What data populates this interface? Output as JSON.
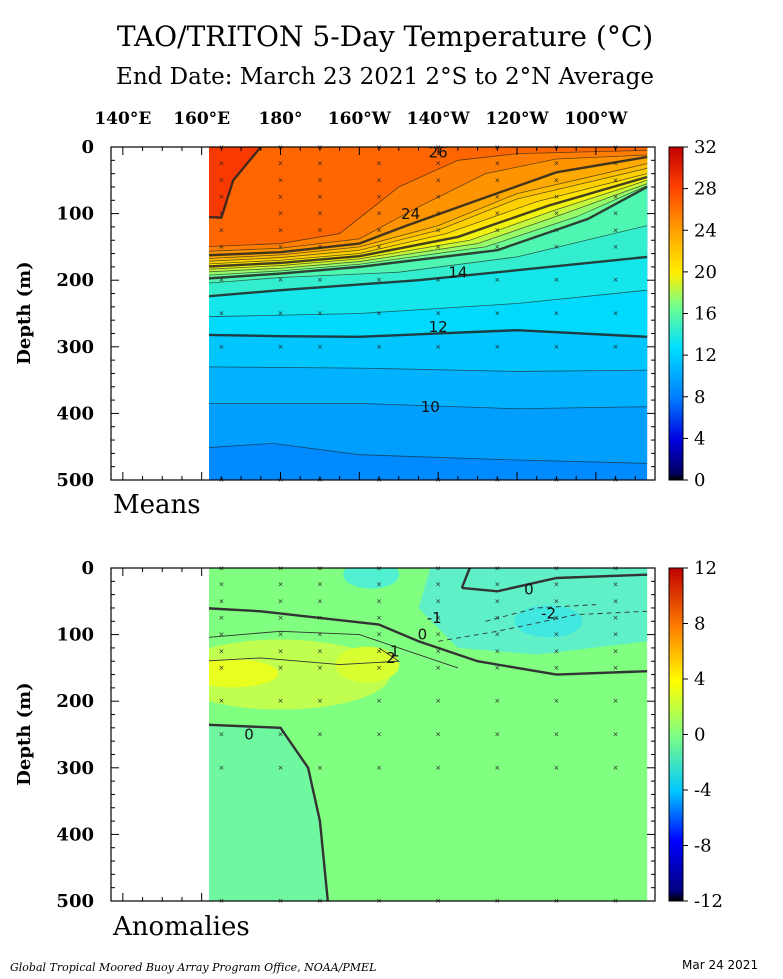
{
  "title": "TAO/TRITON 5-Day Temperature (°C)",
  "subtitle": "End Date: March 23 2021   2°S to 2°N Average",
  "footer": {
    "credit": "Global Tropical Moored Buoy Array Program Office, NOAA/PMEL",
    "date": "Mar 24 2021"
  },
  "chart_data": [
    {
      "type": "heatmap",
      "panel_label": "Means",
      "x_tick_labels": [
        "140°E",
        "160°E",
        "180°",
        "160°W",
        "140°W",
        "120°W",
        "100°W"
      ],
      "x_tick_values": [
        140,
        160,
        180,
        200,
        220,
        240,
        260
      ],
      "xlim": [
        137,
        275
      ],
      "data_xlim": [
        160,
        273
      ],
      "ylabel": "Depth (m)",
      "y_tick_labels": [
        "0",
        "100",
        "200",
        "300",
        "400",
        "500"
      ],
      "ylim": [
        0,
        500
      ],
      "colorbar": {
        "ticks": [
          "0",
          "4",
          "8",
          "12",
          "16",
          "20",
          "24",
          "28",
          "32"
        ],
        "range": [
          0,
          32
        ]
      },
      "contour_labels": [
        "26",
        "24",
        "14",
        "12",
        "10"
      ],
      "isotherms": [
        {
          "value": 28,
          "points": [
            [
              160,
              105
            ],
            [
              165,
              106
            ],
            [
              168,
              50
            ],
            [
              175,
              0
            ]
          ]
        },
        {
          "value": 26,
          "points": [
            [
              160,
              150
            ],
            [
              180,
              145
            ],
            [
              195,
              130
            ],
            [
              210,
              60
            ],
            [
              225,
              20
            ],
            [
              240,
              10
            ],
            [
              273,
              5
            ]
          ]
        },
        {
          "value": 25,
          "points": [
            [
              160,
              157
            ],
            [
              180,
              152
            ],
            [
              200,
              138
            ],
            [
              215,
              90
            ],
            [
              232,
              40
            ],
            [
              250,
              18
            ],
            [
              273,
              12
            ]
          ]
        },
        {
          "value": 24,
          "points": [
            [
              160,
              163
            ],
            [
              180,
              158
            ],
            [
              200,
              145
            ],
            [
              212,
              118
            ],
            [
              230,
              80
            ],
            [
              250,
              38
            ],
            [
              273,
              15
            ]
          ]
        },
        {
          "value": 23,
          "points": [
            [
              160,
              168
            ],
            [
              180,
              162
            ],
            [
              200,
              150
            ],
            [
              220,
              118
            ],
            [
              240,
              70
            ],
            [
              273,
              25
            ]
          ]
        },
        {
          "value": 22,
          "points": [
            [
              160,
              172
            ],
            [
              180,
              166
            ],
            [
              200,
              155
            ],
            [
              220,
              125
            ],
            [
              240,
              78
            ],
            [
              273,
              32
            ]
          ]
        },
        {
          "value": 21,
          "points": [
            [
              160,
              176
            ],
            [
              180,
              170
            ],
            [
              200,
              160
            ],
            [
              222,
              130
            ],
            [
              245,
              82
            ],
            [
              273,
              40
            ]
          ]
        },
        {
          "value": 20,
          "points": [
            [
              160,
              180
            ],
            [
              180,
              174
            ],
            [
              200,
              164
            ],
            [
              225,
              135
            ],
            [
              248,
              88
            ],
            [
              273,
              45
            ]
          ]
        },
        {
          "value": 19,
          "points": [
            [
              160,
              184
            ],
            [
              180,
              178
            ],
            [
              200,
              168
            ],
            [
              228,
              140
            ],
            [
              250,
              94
            ],
            [
              273,
              50
            ]
          ]
        },
        {
          "value": 18,
          "points": [
            [
              160,
              188
            ],
            [
              180,
              182
            ],
            [
              200,
              172
            ],
            [
              230,
              145
            ],
            [
              252,
              100
            ],
            [
              273,
              55
            ]
          ]
        },
        {
          "value": 17,
          "points": [
            [
              160,
              193
            ],
            [
              180,
              186
            ],
            [
              200,
              176
            ],
            [
              232,
              150
            ],
            [
              255,
              105
            ],
            [
              273,
              58
            ]
          ]
        },
        {
          "value": 16,
          "points": [
            [
              160,
              198
            ],
            [
              180,
              190
            ],
            [
              200,
              180
            ],
            [
              235,
              155
            ],
            [
              258,
              108
            ],
            [
              273,
              60
            ]
          ]
        },
        {
          "value": 15,
          "points": [
            [
              160,
              205
            ],
            [
              180,
              196
            ],
            [
              210,
              188
            ],
            [
              240,
              165
            ],
            [
              273,
              118
            ]
          ]
        },
        {
          "value": 14,
          "points": [
            [
              160,
              225
            ],
            [
              180,
              215
            ],
            [
              215,
              200
            ],
            [
              240,
              185
            ],
            [
              273,
              165
            ]
          ]
        },
        {
          "value": 13,
          "points": [
            [
              160,
              255
            ],
            [
              200,
              250
            ],
            [
              240,
              235
            ],
            [
              273,
              215
            ]
          ]
        },
        {
          "value": 12,
          "points": [
            [
              160,
              282
            ],
            [
              180,
              284
            ],
            [
              200,
              285
            ],
            [
              220,
              280
            ],
            [
              240,
              275
            ],
            [
              273,
              285
            ]
          ]
        },
        {
          "value": 11,
          "points": [
            [
              160,
              330
            ],
            [
              200,
              332
            ],
            [
              240,
              337
            ],
            [
              273,
              335
            ]
          ]
        },
        {
          "value": 10,
          "points": [
            [
              160,
              385
            ],
            [
              200,
              385
            ],
            [
              240,
              393
            ],
            [
              273,
              390
            ]
          ]
        },
        {
          "value": 9,
          "points": [
            [
              160,
              452
            ],
            [
              178,
              445
            ],
            [
              200,
              462
            ],
            [
              240,
              470
            ],
            [
              273,
              475
            ]
          ]
        }
      ],
      "sensor_depths": [
        1,
        25,
        50,
        75,
        100,
        125,
        150,
        200,
        250,
        300,
        500
      ],
      "sensor_longitudes": [
        165,
        180,
        190,
        205,
        220,
        235,
        250,
        265
      ]
    },
    {
      "type": "heatmap",
      "panel_label": "Anomalies",
      "ylabel": "Depth (m)",
      "y_tick_labels": [
        "0",
        "100",
        "200",
        "300",
        "400",
        "500"
      ],
      "ylim": [
        0,
        500
      ],
      "xlim": [
        137,
        275
      ],
      "data_xlim": [
        160,
        273
      ],
      "colorbar": {
        "ticks": [
          "-12",
          "-8",
          "-4",
          "0",
          "4",
          "8",
          "12"
        ],
        "range": [
          -12,
          12
        ]
      },
      "contour_labels": [
        "0",
        "-1",
        "-2",
        "0",
        "2",
        "1",
        "0"
      ],
      "anomaly_contours": [
        {
          "value": 0,
          "points": [
            [
              160,
              60
            ],
            [
              175,
              65
            ],
            [
              190,
              75
            ],
            [
              205,
              85
            ],
            [
              215,
              110
            ],
            [
              230,
              140
            ],
            [
              250,
              160
            ],
            [
              273,
              155
            ]
          ]
        },
        {
          "value": 0,
          "points": [
            [
              226,
              30
            ],
            [
              228,
              0
            ]
          ]
        },
        {
          "value": 0,
          "points": [
            [
              226,
              30
            ],
            [
              235,
              35
            ],
            [
              250,
              15
            ],
            [
              273,
              10
            ]
          ]
        },
        {
          "value": 1,
          "points": [
            [
              160,
              105
            ],
            [
              180,
              95
            ],
            [
              200,
              100
            ],
            [
              210,
              120
            ],
            [
              225,
              150
            ]
          ]
        },
        {
          "value": 2,
          "points": [
            [
              160,
              140
            ],
            [
              175,
              135
            ],
            [
              195,
              145
            ],
            [
              210,
              140
            ],
            [
              205,
              120
            ]
          ]
        },
        {
          "value": 0,
          "points": [
            [
              160,
              235
            ],
            [
              180,
              240
            ],
            [
              187,
              300
            ],
            [
              190,
              380
            ],
            [
              192,
              500
            ]
          ]
        },
        {
          "value": -1,
          "points": [
            [
              220,
              110
            ],
            [
              235,
              95
            ],
            [
              255,
              70
            ],
            [
              273,
              65
            ]
          ]
        },
        {
          "value": -2,
          "points": [
            [
              232,
              80
            ],
            [
              245,
              60
            ],
            [
              260,
              55
            ]
          ]
        }
      ],
      "sensor_depths": [
        1,
        25,
        50,
        75,
        100,
        125,
        150,
        200,
        250,
        300,
        500
      ],
      "sensor_longitudes": [
        165,
        180,
        190,
        205,
        220,
        235,
        250,
        265
      ]
    }
  ]
}
